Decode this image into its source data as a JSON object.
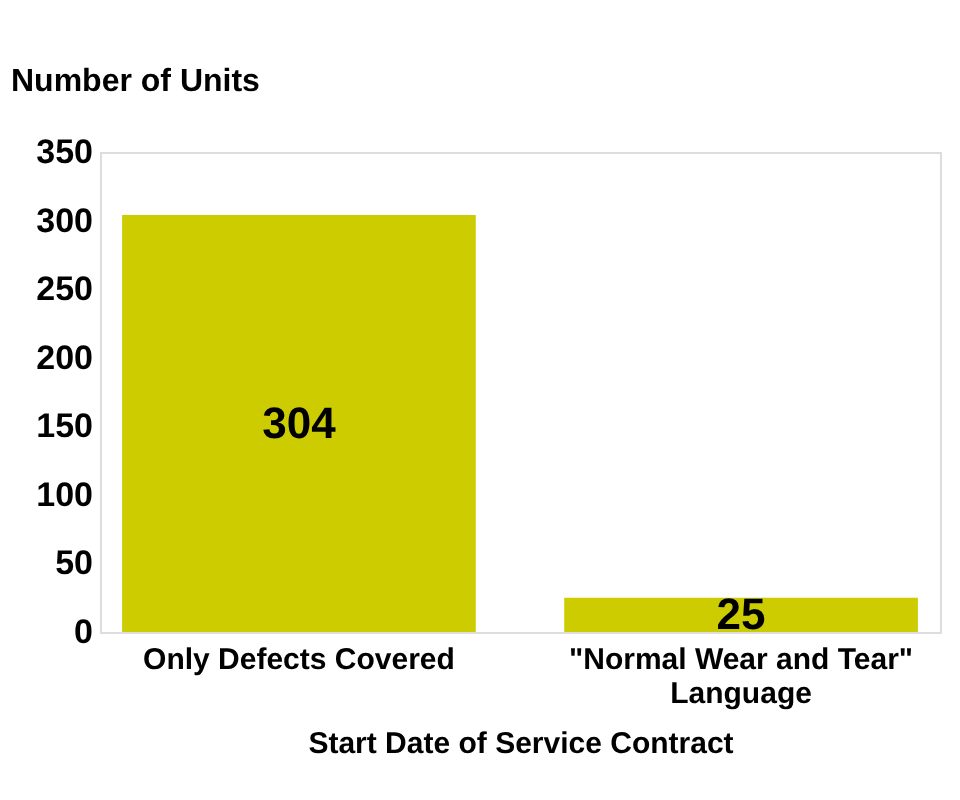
{
  "chart_data": {
    "type": "bar",
    "categories": [
      "Only Defects Covered",
      "\"Normal Wear and Tear\" Language"
    ],
    "values": [
      304,
      25
    ],
    "color": "#cccc00",
    "xlabel": "Start Date of Service Contract",
    "ylabel": "Number of Units",
    "ylim": [
      0,
      350
    ],
    "yticks": [
      0,
      50,
      100,
      150,
      200,
      250,
      300,
      350
    ],
    "grid": false,
    "data_labels": true
  }
}
